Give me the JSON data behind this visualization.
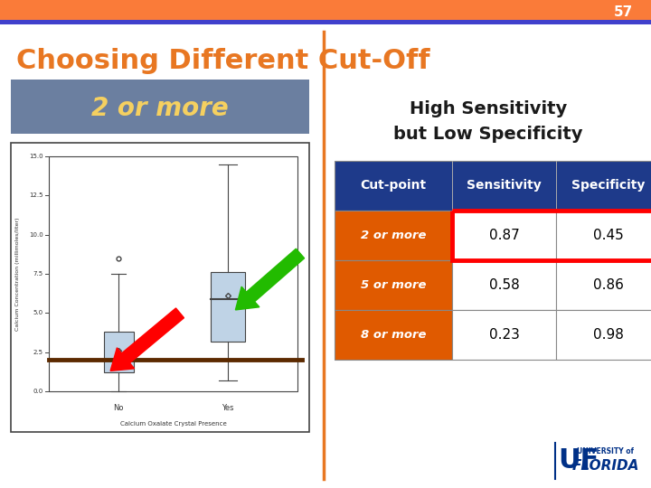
{
  "slide_number": "57",
  "title": "Choosing Different Cut-Off",
  "title_color": "#E87722",
  "bg_color": "#FFFFFF",
  "top_bar_color": "#FA7B39",
  "top_bar_blue": "#4040CC",
  "slide_num_color": "#FFFFFF",
  "divider_color": "#E87722",
  "header_bg": "#6B7FA0",
  "header_text": "2 or more",
  "header_text_color": "#F5D060",
  "high_sens_text": [
    "High Sensitivity",
    "but Low Specificity"
  ],
  "high_sens_color": "#1A1A1A",
  "table_header_bg": "#1E3A8A",
  "table_header_text_color": "#FFFFFF",
  "table_orange_bg": "#E05A00",
  "table_orange_text_color": "#FFFFFF",
  "table_white_bg": "#FFFFFF",
  "table_black_text": "#000000",
  "table_border_highlight": "#FF0000",
  "col_headers": [
    "Cut-point",
    "Sensitivity",
    "Specificity"
  ],
  "rows": [
    {
      "label": "2 or more",
      "sensitivity": "0.87",
      "specificity": "0.45",
      "highlight": true
    },
    {
      "label": "5 or more",
      "sensitivity": "0.58",
      "specificity": "0.86",
      "highlight": false
    },
    {
      "label": "8 or more",
      "sensitivity": "0.23",
      "specificity": "0.98",
      "highlight": false
    }
  ]
}
